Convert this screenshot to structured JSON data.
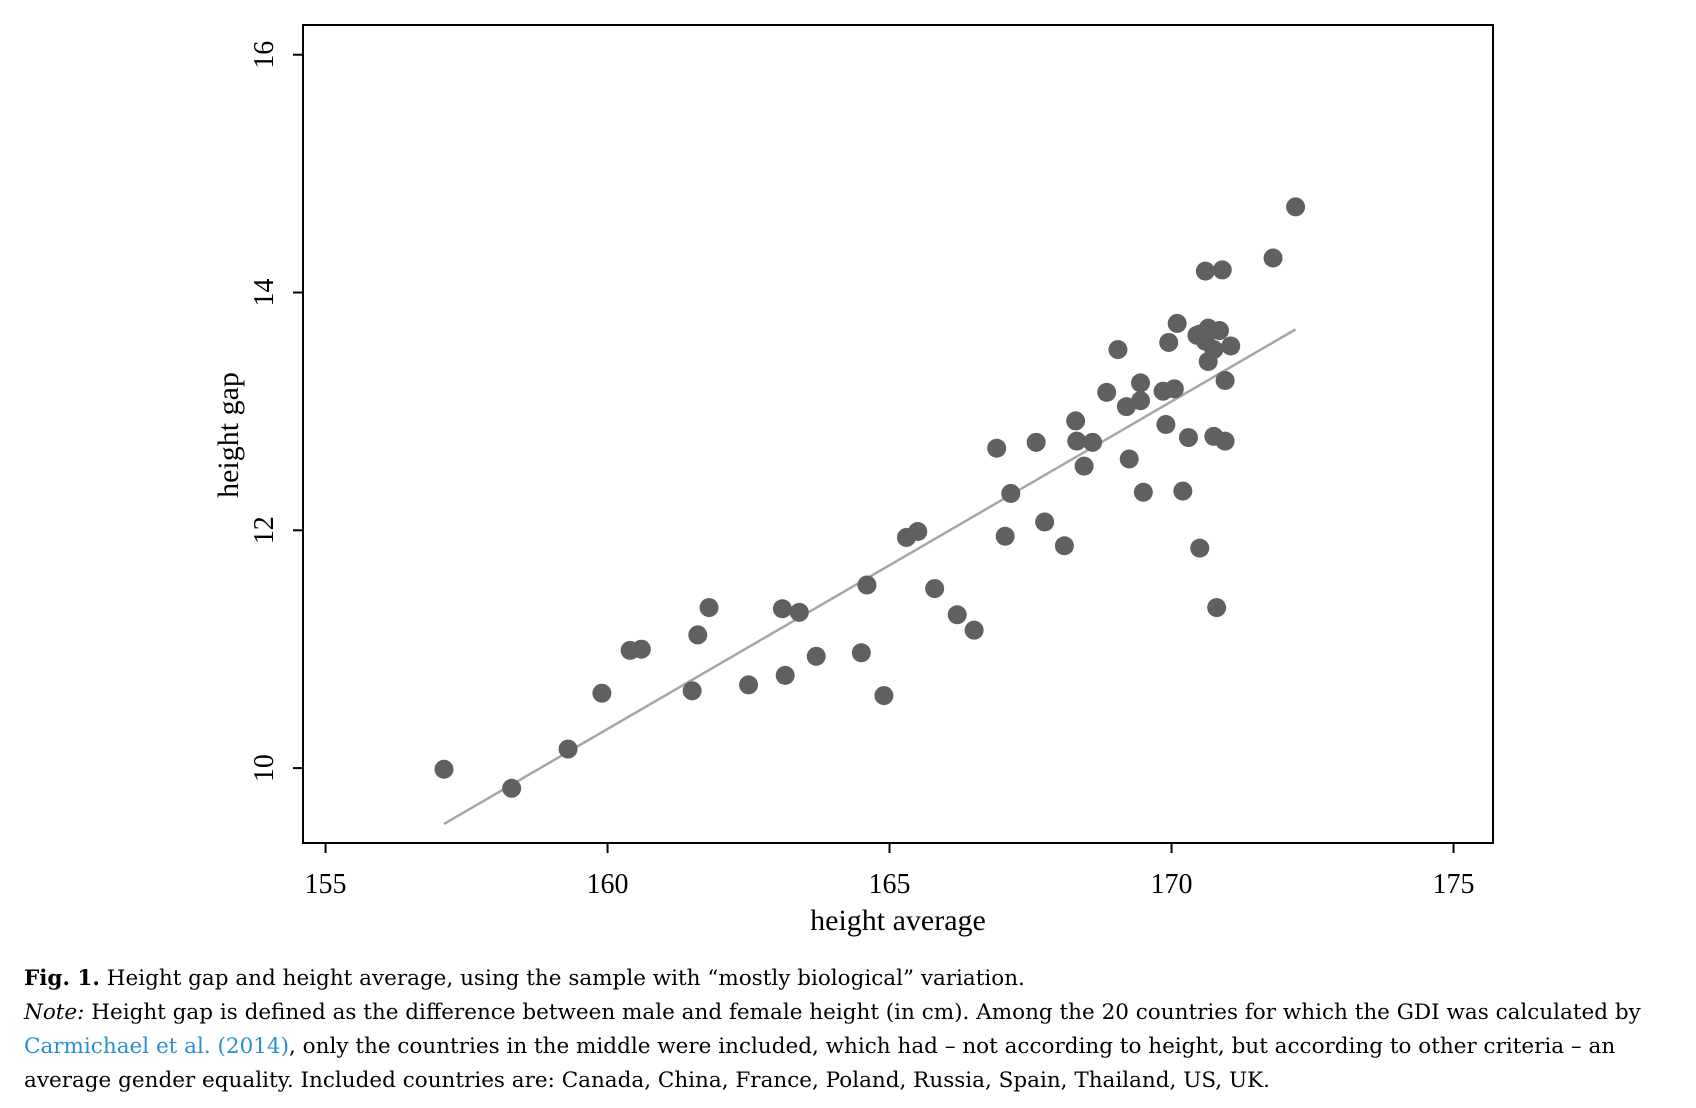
{
  "chart_data": {
    "type": "scatter",
    "title": "",
    "xlabel": "height average",
    "ylabel": "height gap",
    "xlim": [
      154.6,
      175.7
    ],
    "ylim": [
      9.37,
      16.25
    ],
    "xticks": [
      155,
      160,
      165,
      170,
      175
    ],
    "yticks": [
      10,
      12,
      14,
      16
    ],
    "grid": false,
    "legend": "none",
    "marker_color": "#606060",
    "fit_line_color": "#a6a6a6",
    "points": [
      {
        "x": 157.1,
        "y": 9.99
      },
      {
        "x": 158.3,
        "y": 9.83
      },
      {
        "x": 159.3,
        "y": 10.16
      },
      {
        "x": 159.9,
        "y": 10.63
      },
      {
        "x": 160.4,
        "y": 10.99
      },
      {
        "x": 160.6,
        "y": 11.0
      },
      {
        "x": 161.5,
        "y": 10.65
      },
      {
        "x": 161.6,
        "y": 11.12
      },
      {
        "x": 161.8,
        "y": 11.35
      },
      {
        "x": 162.5,
        "y": 10.7
      },
      {
        "x": 163.1,
        "y": 11.34
      },
      {
        "x": 163.15,
        "y": 10.78
      },
      {
        "x": 163.4,
        "y": 11.31
      },
      {
        "x": 163.7,
        "y": 10.94
      },
      {
        "x": 164.5,
        "y": 10.97
      },
      {
        "x": 164.6,
        "y": 11.54
      },
      {
        "x": 164.9,
        "y": 10.61
      },
      {
        "x": 165.3,
        "y": 11.94
      },
      {
        "x": 165.5,
        "y": 11.99
      },
      {
        "x": 165.8,
        "y": 11.51
      },
      {
        "x": 166.2,
        "y": 11.29
      },
      {
        "x": 166.5,
        "y": 11.16
      },
      {
        "x": 166.9,
        "y": 12.69
      },
      {
        "x": 167.05,
        "y": 11.95
      },
      {
        "x": 167.15,
        "y": 12.31
      },
      {
        "x": 167.6,
        "y": 12.74
      },
      {
        "x": 167.75,
        "y": 12.07
      },
      {
        "x": 168.1,
        "y": 11.87
      },
      {
        "x": 168.3,
        "y": 12.92
      },
      {
        "x": 168.32,
        "y": 12.75
      },
      {
        "x": 168.45,
        "y": 12.54
      },
      {
        "x": 168.6,
        "y": 12.74
      },
      {
        "x": 168.85,
        "y": 13.16
      },
      {
        "x": 169.05,
        "y": 13.52
      },
      {
        "x": 169.2,
        "y": 13.04
      },
      {
        "x": 169.25,
        "y": 12.6
      },
      {
        "x": 169.45,
        "y": 13.24
      },
      {
        "x": 169.45,
        "y": 13.09
      },
      {
        "x": 169.5,
        "y": 12.32
      },
      {
        "x": 169.85,
        "y": 13.17
      },
      {
        "x": 169.9,
        "y": 12.89
      },
      {
        "x": 169.95,
        "y": 13.58
      },
      {
        "x": 170.05,
        "y": 13.19
      },
      {
        "x": 170.1,
        "y": 13.74
      },
      {
        "x": 170.2,
        "y": 12.33
      },
      {
        "x": 170.3,
        "y": 12.78
      },
      {
        "x": 170.45,
        "y": 13.64
      },
      {
        "x": 170.5,
        "y": 13.65
      },
      {
        "x": 170.5,
        "y": 11.85
      },
      {
        "x": 170.6,
        "y": 14.18
      },
      {
        "x": 170.6,
        "y": 13.59
      },
      {
        "x": 170.65,
        "y": 13.7
      },
      {
        "x": 170.65,
        "y": 13.42
      },
      {
        "x": 170.75,
        "y": 12.79
      },
      {
        "x": 170.75,
        "y": 13.52
      },
      {
        "x": 170.8,
        "y": 11.35
      },
      {
        "x": 170.85,
        "y": 13.68
      },
      {
        "x": 170.9,
        "y": 14.19
      },
      {
        "x": 170.95,
        "y": 13.26
      },
      {
        "x": 170.95,
        "y": 12.75
      },
      {
        "x": 171.05,
        "y": 13.55
      },
      {
        "x": 171.8,
        "y": 14.29
      },
      {
        "x": 172.2,
        "y": 14.72
      }
    ],
    "fit_line": [
      {
        "x": 157.1,
        "y": 9.53
      },
      {
        "x": 172.2,
        "y": 13.69
      }
    ]
  },
  "caption": {
    "fig_label": "Fig. 1.",
    "fig_text": "Height gap and height average, using the sample with “mostly biological” variation.",
    "note_label": "Note:",
    "note_text_1": "Height gap is defined as the difference between male and female height (in cm). Among the 20 countries for which the GDI was calculated by",
    "reference_link": "Carmichael et al. (2014)",
    "note_text_2": ", only the countries in the middle were included, which had – not according to height, but according to other criteria – an average gender equality. Included countries are: Canada, China, France, Poland, Russia, Spain, Thailand, US, UK."
  }
}
